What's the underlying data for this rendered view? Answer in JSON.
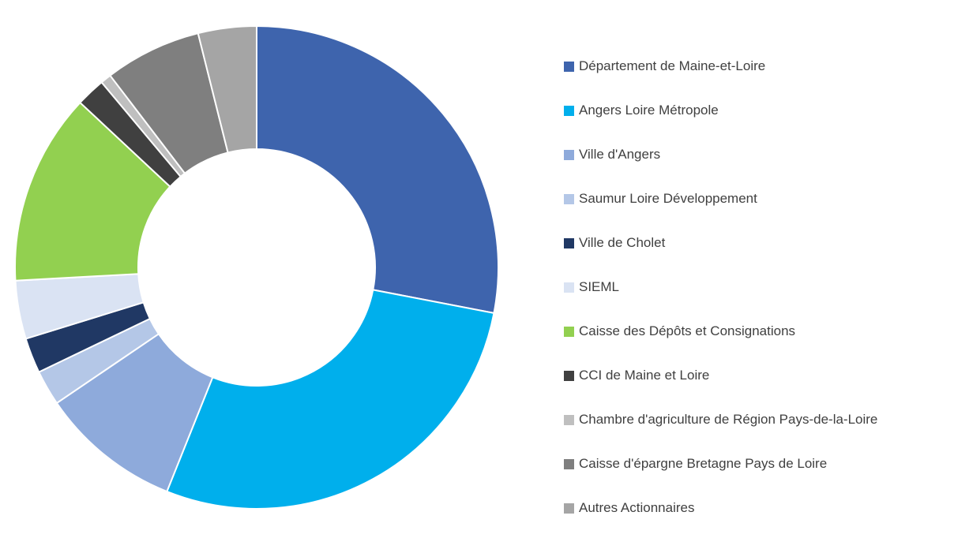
{
  "chart_data": {
    "type": "pie",
    "donut": true,
    "legend_position": "right",
    "categories": [
      "Département de Maine-et-Loire",
      "Angers Loire Métropole",
      "Ville d'Angers",
      "Saumur Loire Développement",
      "Ville de Cholet",
      "SIEML",
      "Caisse des Dépôts et Consignations",
      "CCI de Maine et Loire",
      "Chambre d'agriculture de Région Pays-de-la-Loire",
      "Caisse d'épargne Bretagne Pays de Loire",
      "Autres Actionnaires"
    ],
    "values": [
      27.3,
      27.3,
      9.2,
      2.3,
      2.3,
      3.8,
      12.5,
      1.9,
      0.7,
      6.3,
      3.8
    ],
    "colors": [
      "#3e64ad",
      "#00afec",
      "#8eaadb",
      "#b4c7e7",
      "#203864",
      "#dae3f3",
      "#92d050",
      "#404040",
      "#bfbfbf",
      "#7f7f7f",
      "#a5a5a5"
    ]
  }
}
